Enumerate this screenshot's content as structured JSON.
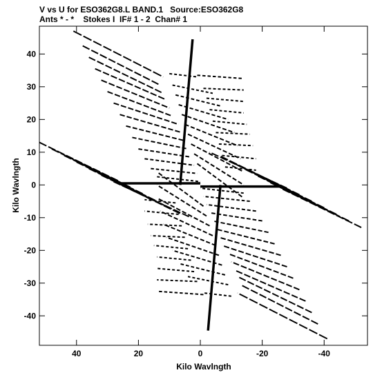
{
  "chart_data": {
    "type": "scatter",
    "title_line_1": "V vs U for ESO362G8.L BAND.1   Source:ESO362G8",
    "title_line_2": "Ants * - *    Stokes I  IF# 1 - 2  Chan# 1",
    "xlabel": "Kilo Wavlngth",
    "ylabel": "Kilo Wavlngth",
    "xlim": [
      52,
      -54
    ],
    "ylim": [
      -49,
      48.5
    ],
    "x_ticks": [
      40,
      20,
      0,
      -20,
      -40
    ],
    "x_tick_labels": [
      "40",
      "20",
      "0",
      "-20",
      "-40"
    ],
    "y_ticks": [
      40,
      30,
      20,
      10,
      0,
      -10,
      -20,
      -30,
      -40
    ],
    "y_tick_labels": [
      "40",
      "30",
      "20",
      "10",
      "0",
      "-10",
      "-20",
      "-30",
      "-40"
    ],
    "grid": false,
    "legend": "none",
    "tracks": [
      {
        "x": [
          41,
          12
        ],
        "y": [
          47,
          33
        ]
      },
      {
        "x": [
          38,
          13
        ],
        "y": [
          42.5,
          30.5
        ]
      },
      {
        "x": [
          36,
          12
        ],
        "y": [
          39,
          28
        ]
      },
      {
        "x": [
          34,
          11
        ],
        "y": [
          35.5,
          26
        ]
      },
      {
        "x": [
          32,
          10
        ],
        "y": [
          32,
          23.5
        ]
      },
      {
        "x": [
          30,
          9
        ],
        "y": [
          28.5,
          21
        ]
      },
      {
        "x": [
          28,
          7
        ],
        "y": [
          25,
          18.5
        ]
      },
      {
        "x": [
          26,
          6
        ],
        "y": [
          21.5,
          16
        ]
      },
      {
        "x": [
          24,
          5
        ],
        "y": [
          18,
          13.5
        ]
      },
      {
        "x": [
          22,
          4
        ],
        "y": [
          14.5,
          11
        ]
      },
      {
        "x": [
          20,
          3
        ],
        "y": [
          11,
          8.5
        ]
      },
      {
        "x": [
          18,
          2
        ],
        "y": [
          8,
          6
        ]
      },
      {
        "x": [
          16,
          1
        ],
        "y": [
          5,
          3.5
        ]
      },
      {
        "x": [
          14,
          0
        ],
        "y": [
          2.5,
          1
        ]
      },
      {
        "x": [
          10,
          1
        ],
        "y": [
          34,
          33
        ]
      },
      {
        "x": [
          9,
          -4
        ],
        "y": [
          30.5,
          28
        ]
      },
      {
        "x": [
          8,
          -7
        ],
        "y": [
          27.5,
          24
        ]
      },
      {
        "x": [
          7,
          -9
        ],
        "y": [
          24.5,
          20
        ]
      },
      {
        "x": [
          6,
          -11
        ],
        "y": [
          21.5,
          16
        ]
      },
      {
        "x": [
          5,
          -12
        ],
        "y": [
          18.5,
          12
        ]
      },
      {
        "x": [
          4,
          -13
        ],
        "y": [
          15.5,
          8
        ]
      },
      {
        "x": [
          3,
          -14
        ],
        "y": [
          12.5,
          4
        ]
      },
      {
        "x": [
          2,
          -14
        ],
        "y": [
          9.5,
          0
        ]
      },
      {
        "x": [
          1,
          -14
        ],
        "y": [
          6.5,
          -4
        ]
      },
      {
        "x": [
          1,
          -14
        ],
        "y": [
          33.5,
          32.5
        ]
      },
      {
        "x": [
          -1,
          -14
        ],
        "y": [
          29.5,
          29
        ]
      },
      {
        "x": [
          -2,
          -14
        ],
        "y": [
          26.5,
          25.5
        ]
      },
      {
        "x": [
          -3,
          -14
        ],
        "y": [
          23,
          22
        ]
      },
      {
        "x": [
          -4,
          -15
        ],
        "y": [
          19.5,
          18.5
        ]
      },
      {
        "x": [
          -5,
          -16
        ],
        "y": [
          16,
          15.5
        ]
      },
      {
        "x": [
          -6,
          -17
        ],
        "y": [
          12.5,
          12
        ]
      },
      {
        "x": [
          -7,
          -18
        ],
        "y": [
          9,
          8
        ]
      },
      {
        "x": [
          -8,
          -18
        ],
        "y": [
          5.5,
          4.5
        ]
      },
      {
        "x": [
          52,
          26
        ],
        "y": [
          13,
          1
        ]
      },
      {
        "x": [
          48,
          22
        ],
        "y": [
          11,
          -1
        ]
      },
      {
        "x": [
          44,
          18
        ],
        "y": [
          9,
          -3
        ]
      },
      {
        "x": [
          40,
          14
        ],
        "y": [
          7,
          -5
        ]
      },
      {
        "x": [
          36,
          10
        ],
        "y": [
          5,
          -7
        ]
      },
      {
        "x": [
          32,
          6
        ],
        "y": [
          3,
          -9
        ]
      },
      {
        "x": [
          28,
          3
        ],
        "y": [
          1,
          -10
        ]
      },
      {
        "x": [
          -41,
          -12
        ],
        "y": [
          -47,
          -33
        ]
      },
      {
        "x": [
          -38,
          -13
        ],
        "y": [
          -42.5,
          -30.5
        ]
      },
      {
        "x": [
          -36,
          -12
        ],
        "y": [
          -39,
          -28
        ]
      },
      {
        "x": [
          -34,
          -11
        ],
        "y": [
          -35.5,
          -26
        ]
      },
      {
        "x": [
          -32,
          -10
        ],
        "y": [
          -32,
          -23.5
        ]
      },
      {
        "x": [
          -30,
          -9
        ],
        "y": [
          -28.5,
          -21
        ]
      },
      {
        "x": [
          -28,
          -7
        ],
        "y": [
          -25,
          -18.5
        ]
      },
      {
        "x": [
          -26,
          -6
        ],
        "y": [
          -21.5,
          -16
        ]
      },
      {
        "x": [
          -24,
          -5
        ],
        "y": [
          -18,
          -13.5
        ]
      },
      {
        "x": [
          -22,
          -4
        ],
        "y": [
          -14.5,
          -11
        ]
      },
      {
        "x": [
          -20,
          -3
        ],
        "y": [
          -11,
          -8.5
        ]
      },
      {
        "x": [
          -18,
          -2
        ],
        "y": [
          -8,
          -6
        ]
      },
      {
        "x": [
          -16,
          -1
        ],
        "y": [
          -5,
          -3.5
        ]
      },
      {
        "x": [
          -14,
          0
        ],
        "y": [
          -2.5,
          -1
        ]
      },
      {
        "x": [
          -10,
          -1
        ],
        "y": [
          -34,
          -33
        ]
      },
      {
        "x": [
          -9,
          4
        ],
        "y": [
          -30.5,
          -28
        ]
      },
      {
        "x": [
          -8,
          7
        ],
        "y": [
          -27.5,
          -24
        ]
      },
      {
        "x": [
          -7,
          9
        ],
        "y": [
          -24.5,
          -20
        ]
      },
      {
        "x": [
          -6,
          11
        ],
        "y": [
          -21.5,
          -16
        ]
      },
      {
        "x": [
          -5,
          12
        ],
        "y": [
          -18.5,
          -12
        ]
      },
      {
        "x": [
          -4,
          13
        ],
        "y": [
          -15.5,
          -8
        ]
      },
      {
        "x": [
          -3,
          14
        ],
        "y": [
          -12.5,
          -4
        ]
      },
      {
        "x": [
          -2,
          14
        ],
        "y": [
          -9.5,
          0
        ]
      },
      {
        "x": [
          -1,
          14
        ],
        "y": [
          -6.5,
          4
        ]
      },
      {
        "x": [
          -1,
          14
        ],
        "y": [
          -33.5,
          -32.5
        ]
      },
      {
        "x": [
          1,
          14
        ],
        "y": [
          -29.5,
          -29
        ]
      },
      {
        "x": [
          2,
          14
        ],
        "y": [
          -26.5,
          -25.5
        ]
      },
      {
        "x": [
          3,
          14
        ],
        "y": [
          -23,
          -22
        ]
      },
      {
        "x": [
          4,
          15
        ],
        "y": [
          -19.5,
          -18.5
        ]
      },
      {
        "x": [
          5,
          16
        ],
        "y": [
          -16,
          -15.5
        ]
      },
      {
        "x": [
          6,
          17
        ],
        "y": [
          -12.5,
          -12
        ]
      },
      {
        "x": [
          7,
          18
        ],
        "y": [
          -9,
          -8
        ]
      },
      {
        "x": [
          8,
          18
        ],
        "y": [
          -5.5,
          -4.5
        ]
      },
      {
        "x": [
          -52,
          -26
        ],
        "y": [
          -13,
          -1
        ]
      },
      {
        "x": [
          -48,
          -22
        ],
        "y": [
          -11,
          1
        ]
      },
      {
        "x": [
          -44,
          -18
        ],
        "y": [
          -9,
          3
        ]
      },
      {
        "x": [
          -40,
          -14
        ],
        "y": [
          -7,
          5
        ]
      },
      {
        "x": [
          -36,
          -10
        ],
        "y": [
          -5,
          7
        ]
      },
      {
        "x": [
          -32,
          -6
        ],
        "y": [
          -3,
          9
        ]
      },
      {
        "x": [
          -28,
          -3
        ],
        "y": [
          -1,
          10
        ]
      }
    ],
    "ridges": [
      {
        "x": [
          2.5,
          6.5
        ],
        "y": [
          44.5,
          0
        ]
      },
      {
        "x": [
          -2.5,
          -6.5
        ],
        "y": [
          -44.5,
          0
        ]
      },
      {
        "x": [
          26,
          0
        ],
        "y": [
          0.5,
          0.5
        ]
      },
      {
        "x": [
          -26,
          0
        ],
        "y": [
          -0.5,
          -0.5
        ]
      }
    ]
  }
}
